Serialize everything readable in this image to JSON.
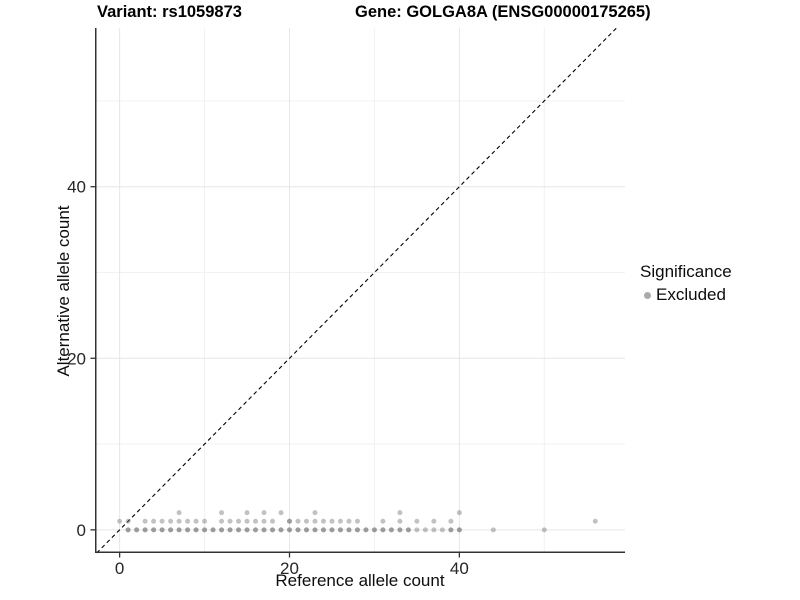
{
  "titles": {
    "variant": "Variant: rs1059873",
    "gene": "Gene: GOLGA8A (ENSG00000175265)"
  },
  "axes": {
    "xlabel": "Reference allele count",
    "ylabel": "Alternative allele count",
    "xticks": [
      "0",
      "20",
      "40"
    ],
    "yticks": [
      "0",
      "20",
      "40"
    ]
  },
  "legend": {
    "title": "Significance",
    "items": [
      {
        "label": "Excluded",
        "color": "#ababab"
      }
    ]
  },
  "colors": {
    "point_base": "#6e6e6e",
    "point_opacity": 0.42,
    "grid_major": "#e6e6e6",
    "grid_minor": "#f2f2f2",
    "axis_line": "#333333",
    "tick_label": "#262626",
    "identity_line": "#000000"
  },
  "chart_data": {
    "type": "scatter",
    "title": "Variant: rs1059873 | Gene: GOLGA8A (ENSG00000175265)",
    "xlabel": "Reference allele count",
    "ylabel": "Alternative allele count",
    "xlim": [
      -2.9,
      59.5
    ],
    "ylim": [
      -2.7,
      58.5
    ],
    "xticks": [
      0,
      20,
      40
    ],
    "yticks": [
      0,
      20,
      40
    ],
    "xminor": [
      10,
      30,
      50
    ],
    "yminor": [
      10,
      30,
      50
    ],
    "grid": true,
    "legend_position": "right",
    "reference_line": {
      "kind": "identity",
      "style": "dashed"
    },
    "series": [
      {
        "name": "Excluded",
        "points": [
          [
            1,
            0,
            2
          ],
          [
            2,
            0,
            2
          ],
          [
            3,
            0,
            2
          ],
          [
            4,
            0,
            2
          ],
          [
            5,
            0,
            2
          ],
          [
            6,
            0,
            2
          ],
          [
            7,
            0,
            2
          ],
          [
            8,
            0,
            2
          ],
          [
            9,
            0,
            2
          ],
          [
            10,
            0,
            2
          ],
          [
            11,
            0,
            2
          ],
          [
            12,
            0,
            2
          ],
          [
            13,
            0,
            2
          ],
          [
            14,
            0,
            2
          ],
          [
            15,
            0,
            2
          ],
          [
            16,
            0,
            2
          ],
          [
            17,
            0,
            2
          ],
          [
            18,
            0,
            2
          ],
          [
            19,
            0,
            2
          ],
          [
            20,
            0,
            2
          ],
          [
            21,
            0,
            2
          ],
          [
            22,
            0,
            2
          ],
          [
            23,
            0,
            2
          ],
          [
            24,
            0,
            2
          ],
          [
            25,
            0,
            2
          ],
          [
            26,
            0,
            2
          ],
          [
            27,
            0,
            2
          ],
          [
            28,
            0,
            2
          ],
          [
            29,
            0,
            2
          ],
          [
            30,
            0,
            2
          ],
          [
            31,
            0,
            2
          ],
          [
            32,
            0,
            2
          ],
          [
            33,
            0,
            2
          ],
          [
            34,
            0,
            2
          ],
          [
            35,
            0,
            1
          ],
          [
            36,
            0,
            1
          ],
          [
            37,
            0,
            1
          ],
          [
            38,
            0,
            1
          ],
          [
            39,
            0,
            2
          ],
          [
            40,
            0,
            2
          ],
          [
            44,
            0,
            1
          ],
          [
            50,
            0,
            1
          ],
          [
            0,
            1,
            1
          ],
          [
            1,
            1,
            1
          ],
          [
            3,
            1,
            1
          ],
          [
            4,
            1,
            1
          ],
          [
            5,
            1,
            1
          ],
          [
            6,
            1,
            1
          ],
          [
            7,
            1,
            1
          ],
          [
            8,
            1,
            1
          ],
          [
            9,
            1,
            1
          ],
          [
            10,
            1,
            1
          ],
          [
            12,
            1,
            1
          ],
          [
            13,
            1,
            1
          ],
          [
            14,
            1,
            1
          ],
          [
            15,
            1,
            1
          ],
          [
            16,
            1,
            1
          ],
          [
            17,
            1,
            1
          ],
          [
            18,
            1,
            1
          ],
          [
            20,
            1,
            2
          ],
          [
            21,
            1,
            1
          ],
          [
            22,
            1,
            1
          ],
          [
            23,
            1,
            1
          ],
          [
            24,
            1,
            1
          ],
          [
            25,
            1,
            1
          ],
          [
            26,
            1,
            1
          ],
          [
            27,
            1,
            1
          ],
          [
            28,
            1,
            1
          ],
          [
            31,
            1,
            1
          ],
          [
            33,
            1,
            1
          ],
          [
            35,
            1,
            1
          ],
          [
            37,
            1,
            1
          ],
          [
            39,
            1,
            1
          ],
          [
            56,
            1,
            1
          ],
          [
            7,
            2,
            1
          ],
          [
            12,
            2,
            1
          ],
          [
            15,
            2,
            1
          ],
          [
            17,
            2,
            1
          ],
          [
            19,
            2,
            1
          ],
          [
            23,
            2,
            1
          ],
          [
            33,
            2,
            1
          ],
          [
            40,
            2,
            1
          ]
        ]
      }
    ]
  }
}
